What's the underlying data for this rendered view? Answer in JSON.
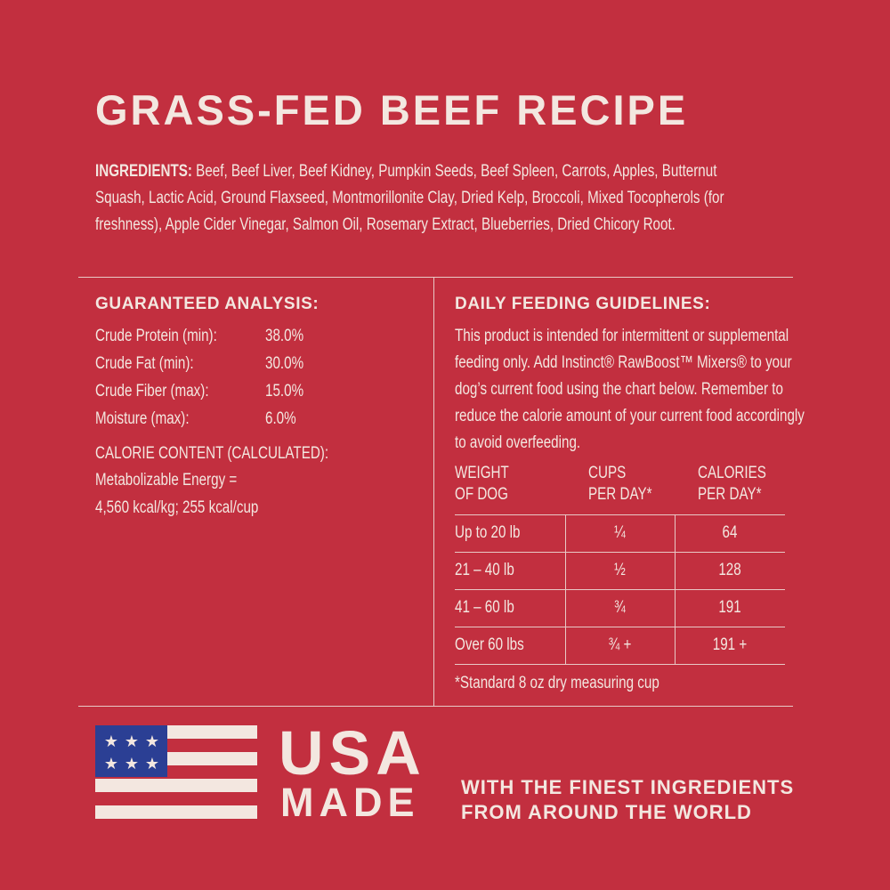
{
  "title": "GRASS-FED BEEF RECIPE",
  "ingredients": {
    "label": "INGREDIENTS:",
    "text": "Beef, Beef Liver, Beef Kidney, Pumpkin Seeds, Beef Spleen, Carrots, Apples, Butternut Squash, Lactic Acid, Ground Flaxseed, Montmorillonite Clay, Dried Kelp, Broccoli, Mixed Tocopherols (for freshness), Apple Cider Vinegar, Salmon Oil, Rosemary Extract, Blueberries, Dried Chicory Root."
  },
  "analysis": {
    "heading": "GUARANTEED ANALYSIS:",
    "rows": [
      [
        "Crude Protein (min):",
        "38.0%"
      ],
      [
        "Crude Fat (min):",
        "30.0%"
      ],
      [
        "Crude Fiber (max):",
        "15.0%"
      ],
      [
        "Moisture (max):",
        "6.0%"
      ]
    ],
    "calorie_heading": "CALORIE CONTENT (CALCULATED):",
    "calorie_lines": [
      "Metabolizable Energy =",
      "4,560 kcal/kg; 255 kcal/cup"
    ]
  },
  "feeding": {
    "heading": "DAILY FEEDING GUIDELINES:",
    "text": "This product is intended for intermittent or supplemental feeding only. Add Instinct® RawBoost™ Mixers® to your dog’s current food using the chart below. Remember to reduce the calorie amount of your current food accordingly to avoid overfeeding.",
    "table": {
      "header": [
        [
          "WEIGHT",
          "OF DOG"
        ],
        [
          "CUPS",
          "PER DAY*"
        ],
        [
          "CALORIES",
          "PER DAY*"
        ]
      ],
      "rows": [
        [
          "Up to 20 lb",
          "¼",
          "64"
        ],
        [
          "21 – 40 lb",
          "½",
          "128"
        ],
        [
          "41 – 60 lb",
          "¾",
          "191"
        ],
        [
          "Over 60 lbs",
          "¾ +",
          "191 +"
        ]
      ]
    },
    "footnote": "*Standard 8 oz dry measuring cup"
  },
  "footer": {
    "usa": "USA",
    "made": "MADE",
    "tagline": [
      "WITH THE FINEST INGREDIENTS",
      "FROM AROUND THE WORLD"
    ]
  }
}
